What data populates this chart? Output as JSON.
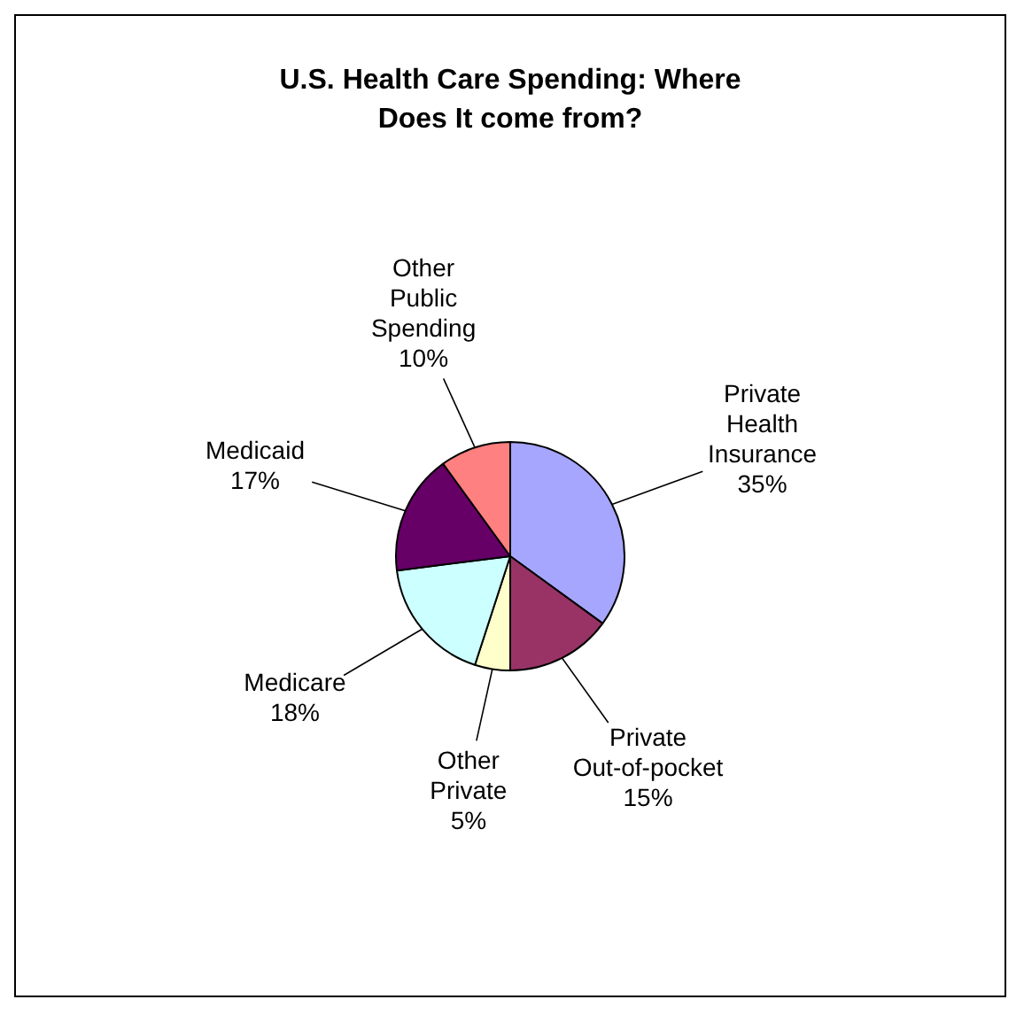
{
  "chart_data": {
    "type": "pie",
    "title": "U.S. Health Care Spending: Where Does It come from?",
    "categories": [
      "Private Health Insurance",
      "Private Out-of-pocket",
      "Other Private",
      "Medicare",
      "Medicaid",
      "Other Public Spending"
    ],
    "values": [
      35,
      15,
      5,
      18,
      17,
      10
    ],
    "colors": [
      "#a6a6ff",
      "#993366",
      "#ffffcc",
      "#ccffff",
      "#660066",
      "#ff8080"
    ],
    "value_labels": [
      "35%",
      "15%",
      "5%",
      "18%",
      "17%",
      "10%"
    ],
    "legend": false
  }
}
